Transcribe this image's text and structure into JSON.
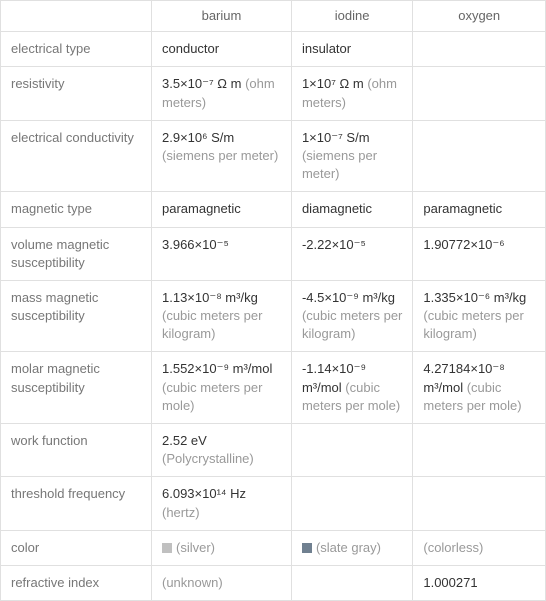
{
  "columns": [
    "barium",
    "iodine",
    "oxygen"
  ],
  "rows": [
    {
      "label": "electrical type",
      "cells": [
        "conductor",
        "insulator",
        ""
      ]
    },
    {
      "label": "resistivity",
      "cells": [
        {
          "val": "3.5×10⁻⁷ Ω m",
          "unit": "(ohm meters)"
        },
        {
          "val": "1×10⁷ Ω m",
          "unit": "(ohm meters)"
        },
        ""
      ]
    },
    {
      "label": "electrical conductivity",
      "cells": [
        {
          "val": "2.9×10⁶ S/m",
          "unit": "(siemens per meter)"
        },
        {
          "val": "1×10⁻⁷ S/m",
          "unit": "(siemens per meter)"
        },
        ""
      ]
    },
    {
      "label": "magnetic type",
      "cells": [
        "paramagnetic",
        "diamagnetic",
        "paramagnetic"
      ]
    },
    {
      "label": "volume magnetic susceptibility",
      "cells": [
        "3.966×10⁻⁵",
        "-2.22×10⁻⁵",
        "1.90772×10⁻⁶"
      ]
    },
    {
      "label": "mass magnetic susceptibility",
      "cells": [
        {
          "val": "1.13×10⁻⁸ m³/kg",
          "unit": "(cubic meters per kilogram)"
        },
        {
          "val": "-4.5×10⁻⁹ m³/kg",
          "unit": "(cubic meters per kilogram)"
        },
        {
          "val": "1.335×10⁻⁶ m³/kg",
          "unit": "(cubic meters per kilogram)"
        }
      ]
    },
    {
      "label": "molar magnetic susceptibility",
      "cells": [
        {
          "val": "1.552×10⁻⁹ m³/mol",
          "unit": "(cubic meters per mole)"
        },
        {
          "val": "-1.14×10⁻⁹ m³/mol",
          "unit": "(cubic meters per mole)"
        },
        {
          "val": "4.27184×10⁻⁸ m³/mol",
          "unit": "(cubic meters per mole)"
        }
      ]
    },
    {
      "label": "work function",
      "cells": [
        {
          "val": "2.52 eV",
          "unit": "(Polycrystalline)"
        },
        "",
        ""
      ]
    },
    {
      "label": "threshold frequency",
      "cells": [
        {
          "val": "6.093×10¹⁴ Hz",
          "unit": "(hertz)"
        },
        "",
        ""
      ]
    },
    {
      "label": "color",
      "cells": [
        {
          "swatch": "#c0c0c0",
          "text": "(silver)"
        },
        {
          "swatch": "#708090",
          "text": "(slate gray)"
        },
        {
          "colorless": true,
          "text": "(colorless)"
        }
      ]
    },
    {
      "label": "refractive index",
      "cells": [
        {
          "unknown": true,
          "text": "(unknown)"
        },
        "",
        "1.000271"
      ]
    }
  ]
}
